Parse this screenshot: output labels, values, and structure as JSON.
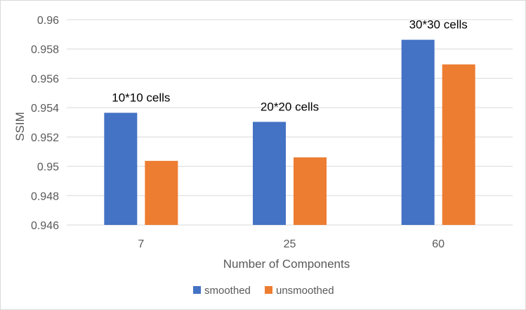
{
  "chart_data": {
    "type": "bar",
    "categories": [
      "7",
      "25",
      "60"
    ],
    "series": [
      {
        "name": "smoothed",
        "values": [
          0.95365,
          0.95303,
          0.95863
        ],
        "color": "#4472C4"
      },
      {
        "name": "unsmoothed",
        "values": [
          0.95037,
          0.95061,
          0.95695
        ],
        "color": "#ED7D31"
      }
    ],
    "annotations": [
      "10*10 cells",
      "20*20 cells",
      "30*30 cells"
    ],
    "xlabel": "Number of Components",
    "ylabel": "SSIM",
    "ylim": [
      0.946,
      0.96
    ],
    "yticks": [
      "0.946",
      "0.948",
      "0.95",
      "0.952",
      "0.954",
      "0.956",
      "0.958",
      "0.96"
    ],
    "grid": true,
    "legend_position": "bottom"
  }
}
